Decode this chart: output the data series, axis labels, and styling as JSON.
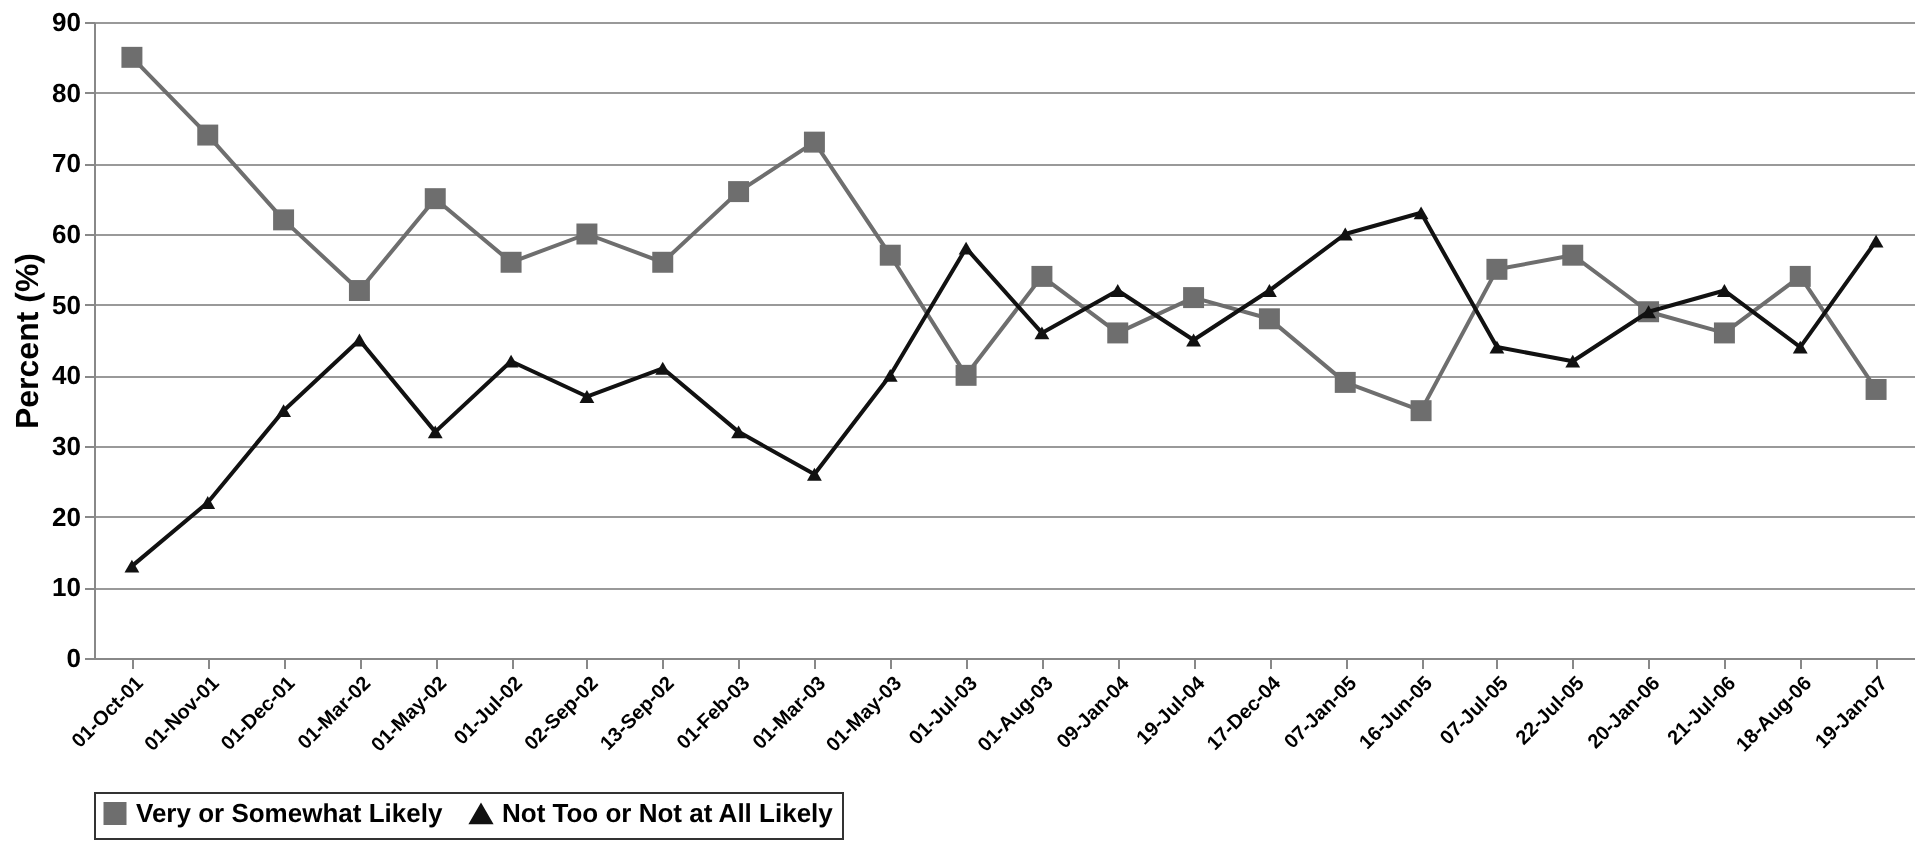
{
  "chart_data": {
    "type": "line",
    "ylabel": "Percent (%)",
    "categories": [
      "01-Oct-01",
      "01-Nov-01",
      "01-Dec-01",
      "01-Mar-02",
      "01-May-02",
      "01-Jul-02",
      "02-Sep-02",
      "13-Sep-02",
      "01-Feb-03",
      "01-Mar-03",
      "01-May-03",
      "01-Jul-03",
      "01-Aug-03",
      "09-Jan-04",
      "19-Jul-04",
      "17-Dec-04",
      "07-Jan-05",
      "16-Jun-05",
      "07-Jul-05",
      "22-Jul-05",
      "20-Jan-06",
      "21-Jul-06",
      "18-Aug-06",
      "19-Jan-07"
    ],
    "series": [
      {
        "name": "Very or Somewhat Likely",
        "color": "#6e6e6e",
        "marker": "square",
        "values": [
          85,
          74,
          62,
          52,
          65,
          56,
          60,
          56,
          66,
          73,
          57,
          40,
          54,
          46,
          51,
          48,
          39,
          35,
          55,
          57,
          49,
          46,
          54,
          38
        ]
      },
      {
        "name": "Not Too or Not at All Likely",
        "color": "#111111",
        "marker": "triangle",
        "values": [
          13,
          22,
          35,
          45,
          32,
          42,
          37,
          41,
          32,
          26,
          40,
          58,
          46,
          52,
          45,
          52,
          60,
          63,
          44,
          42,
          49,
          52,
          44,
          59
        ]
      }
    ],
    "ylim": [
      0,
      90
    ],
    "yticks": [
      0,
      10,
      20,
      30,
      40,
      50,
      60,
      70,
      80,
      90
    ],
    "grid": "y",
    "legend": "bottom",
    "line_style": "solid"
  }
}
